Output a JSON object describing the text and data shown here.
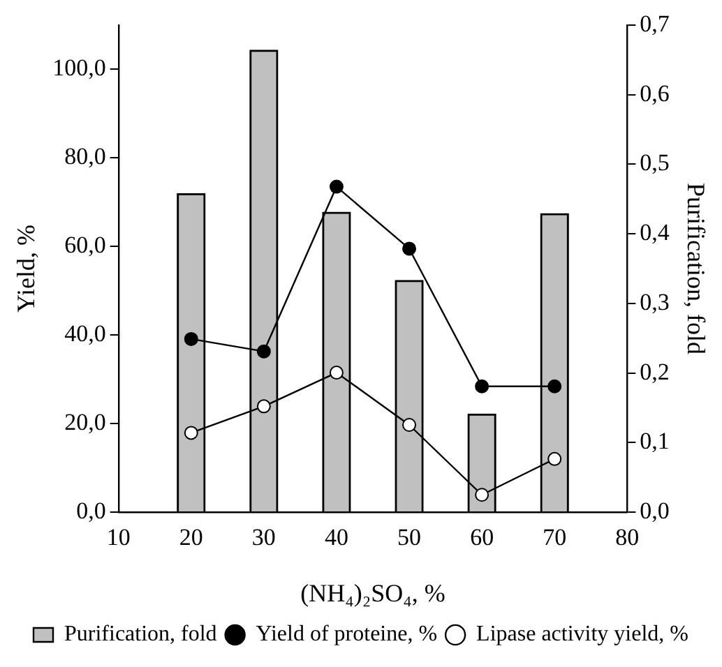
{
  "chart_data": {
    "type": "bar",
    "x": [
      20,
      30,
      40,
      50,
      60,
      70
    ],
    "xlabel": "(NH₄)₂SO₄, %",
    "ylabel": "Yield, %",
    "y2label": "Purification, fold",
    "xlim": [
      10,
      80
    ],
    "xticks": [
      10,
      20,
      30,
      40,
      50,
      60,
      70,
      80
    ],
    "ylim": [
      0,
      110
    ],
    "yticks": [
      {
        "value": 0,
        "label": "0,0"
      },
      {
        "value": 20,
        "label": "20,0"
      },
      {
        "value": 40,
        "label": "40,0"
      },
      {
        "value": 60,
        "label": "60,0"
      },
      {
        "value": 80,
        "label": "80,0"
      },
      {
        "value": 100,
        "label": "100,0"
      }
    ],
    "y2lim": [
      0,
      0.7
    ],
    "y2ticks": [
      {
        "value": 0,
        "label": "0,0"
      },
      {
        "value": 0.1,
        "label": "0,1"
      },
      {
        "value": 0.2,
        "label": "0,2"
      },
      {
        "value": 0.3,
        "label": "0,3"
      },
      {
        "value": 0.4,
        "label": "0,4"
      },
      {
        "value": 0.5,
        "label": "0,5"
      },
      {
        "value": 0.6,
        "label": "0,6"
      },
      {
        "value": 0.7,
        "label": "0,7"
      }
    ],
    "series": [
      {
        "name": "Purification, fold",
        "axis": "y2",
        "color": "#c0c0c0",
        "values": [
          0.458,
          0.664,
          0.431,
          0.333,
          0.141,
          0.429
        ]
      },
      {
        "name": "Yield of proteine, %",
        "type": "line",
        "color": "#000000",
        "values": [
          39.1,
          36.3,
          73.5,
          59.5,
          28.4,
          28.4
        ]
      },
      {
        "name": "Lipase activity yield, %",
        "type": "line",
        "color": "#ffffff",
        "values": [
          17.9,
          23.9,
          31.5,
          19.7,
          3.9,
          12.0
        ]
      }
    ],
    "grid": false,
    "legend": "bottom",
    "marker": "circle",
    "line_style": "solid"
  }
}
